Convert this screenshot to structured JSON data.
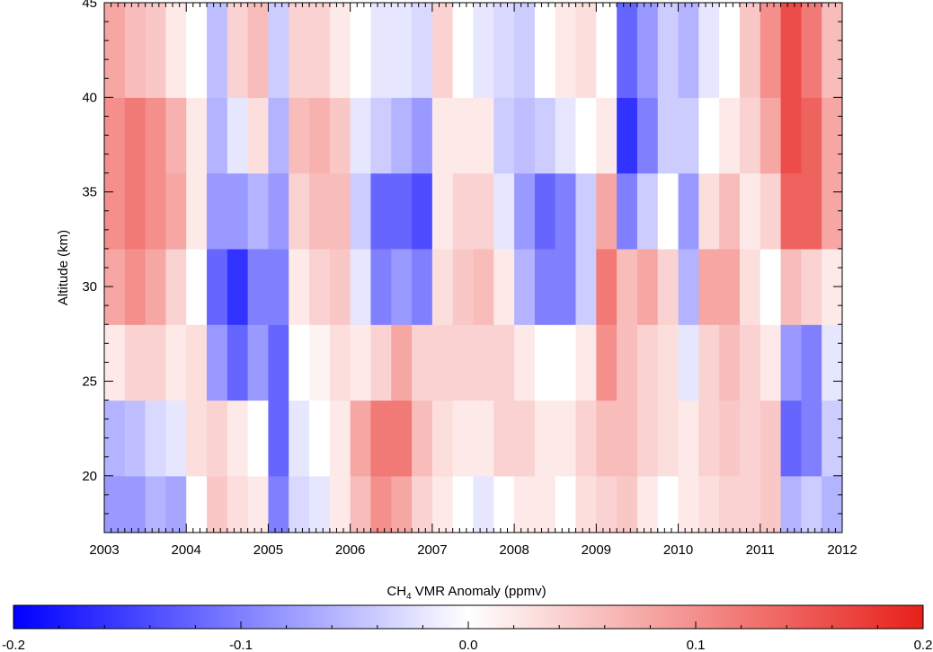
{
  "chart_data": {
    "type": "heatmap",
    "title": "",
    "xlabel": "",
    "ylabel": "Altitude (km)",
    "xlim": [
      2003,
      2012
    ],
    "ylim": [
      17,
      45
    ],
    "x_ticks": [
      "2003",
      "2004",
      "2005",
      "2006",
      "2007",
      "2008",
      "2009",
      "2010",
      "2011",
      "2012"
    ],
    "y_ticks": [
      "20",
      "25",
      "30",
      "35",
      "40",
      "45"
    ],
    "colorbar": {
      "label_main": "CH",
      "label_sub": "4",
      "label_rest": " VMR Anomaly (ppmv)",
      "range": [
        -0.2,
        0.2
      ],
      "ticks": [
        "-0.2",
        "-0.1",
        "0.0",
        "0.1",
        "0.2"
      ],
      "colors": [
        "#0000ff",
        "#ffffff",
        "#e8201a"
      ]
    },
    "altitudes": [
      18,
      22,
      26,
      30,
      34,
      38,
      42
    ],
    "series": [
      {
        "time": 2003.0,
        "anomaly": [
          -0.08,
          -0.06,
          0.02,
          0.08,
          0.1,
          0.1,
          0.08
        ]
      },
      {
        "time": 2003.25,
        "anomaly": [
          -0.08,
          -0.05,
          0.04,
          0.1,
          0.12,
          0.12,
          0.06
        ]
      },
      {
        "time": 2003.5,
        "anomaly": [
          -0.06,
          -0.03,
          0.04,
          0.08,
          0.1,
          0.1,
          0.05
        ]
      },
      {
        "time": 2003.75,
        "anomaly": [
          -0.07,
          -0.02,
          0.02,
          0.04,
          0.08,
          0.07,
          0.02
        ]
      },
      {
        "time": 2004.0,
        "anomaly": [
          0.0,
          0.03,
          0.03,
          0.0,
          0.02,
          0.02,
          0.0
        ]
      },
      {
        "time": 2004.25,
        "anomaly": [
          0.05,
          0.04,
          -0.08,
          -0.12,
          -0.08,
          -0.06,
          -0.05
        ]
      },
      {
        "time": 2004.5,
        "anomaly": [
          0.03,
          0.02,
          -0.12,
          -0.16,
          -0.08,
          -0.02,
          0.04
        ]
      },
      {
        "time": 2004.75,
        "anomaly": [
          0.02,
          0.0,
          -0.08,
          -0.1,
          -0.06,
          0.03,
          0.06
        ]
      },
      {
        "time": 2005.0,
        "anomaly": [
          -0.1,
          -0.12,
          -0.12,
          -0.1,
          -0.08,
          -0.06,
          -0.04
        ]
      },
      {
        "time": 2005.25,
        "anomaly": [
          -0.03,
          -0.02,
          0.0,
          0.02,
          0.04,
          0.06,
          0.04
        ]
      },
      {
        "time": 2005.5,
        "anomaly": [
          -0.02,
          0.0,
          0.01,
          0.04,
          0.06,
          0.07,
          0.04
        ]
      },
      {
        "time": 2005.75,
        "anomaly": [
          0.02,
          0.02,
          0.03,
          0.05,
          0.06,
          0.05,
          0.02
        ]
      },
      {
        "time": 2006.0,
        "anomaly": [
          0.06,
          0.08,
          0.02,
          -0.02,
          -0.04,
          -0.02,
          0.0
        ]
      },
      {
        "time": 2006.25,
        "anomaly": [
          0.1,
          0.12,
          0.04,
          -0.1,
          -0.12,
          -0.04,
          -0.02
        ]
      },
      {
        "time": 2006.5,
        "anomaly": [
          0.08,
          0.12,
          0.08,
          -0.08,
          -0.12,
          -0.06,
          -0.02
        ]
      },
      {
        "time": 2006.75,
        "anomaly": [
          0.04,
          0.06,
          0.04,
          -0.1,
          -0.14,
          -0.08,
          -0.03
        ]
      },
      {
        "time": 2007.0,
        "anomaly": [
          0.02,
          0.03,
          0.04,
          0.03,
          0.02,
          0.02,
          0.04
        ]
      },
      {
        "time": 2007.25,
        "anomaly": [
          0.0,
          0.02,
          0.04,
          0.05,
          0.04,
          0.02,
          0.0
        ]
      },
      {
        "time": 2007.5,
        "anomaly": [
          -0.02,
          0.02,
          0.04,
          0.06,
          0.04,
          0.02,
          -0.02
        ]
      },
      {
        "time": 2007.75,
        "anomaly": [
          0.0,
          0.04,
          0.04,
          0.02,
          -0.02,
          -0.04,
          -0.03
        ]
      },
      {
        "time": 2008.0,
        "anomaly": [
          0.02,
          0.04,
          0.02,
          -0.06,
          -0.08,
          -0.05,
          -0.04
        ]
      },
      {
        "time": 2008.25,
        "anomaly": [
          0.02,
          0.02,
          0.0,
          -0.1,
          -0.12,
          -0.04,
          0.0
        ]
      },
      {
        "time": 2008.5,
        "anomaly": [
          0.0,
          0.02,
          0.0,
          -0.1,
          -0.1,
          -0.02,
          0.02
        ]
      },
      {
        "time": 2008.75,
        "anomaly": [
          0.03,
          0.04,
          0.02,
          -0.04,
          -0.04,
          0.0,
          0.03
        ]
      },
      {
        "time": 2009.0,
        "anomaly": [
          0.04,
          0.06,
          0.1,
          0.12,
          0.08,
          0.02,
          0.0
        ]
      },
      {
        "time": 2009.25,
        "anomaly": [
          0.05,
          0.06,
          0.06,
          0.06,
          -0.1,
          -0.16,
          -0.12
        ]
      },
      {
        "time": 2009.5,
        "anomaly": [
          0.02,
          0.04,
          0.04,
          0.08,
          -0.04,
          -0.1,
          -0.08
        ]
      },
      {
        "time": 2009.75,
        "anomaly": [
          0.0,
          0.03,
          0.03,
          0.04,
          0.0,
          -0.04,
          -0.04
        ]
      },
      {
        "time": 2010.0,
        "anomaly": [
          0.02,
          0.02,
          -0.02,
          -0.06,
          -0.08,
          -0.04,
          -0.06
        ]
      },
      {
        "time": 2010.25,
        "anomaly": [
          0.03,
          0.04,
          0.04,
          0.08,
          0.03,
          0.0,
          -0.02
        ]
      },
      {
        "time": 2010.5,
        "anomaly": [
          0.04,
          0.05,
          0.06,
          0.08,
          0.06,
          0.02,
          0.0
        ]
      },
      {
        "time": 2010.75,
        "anomaly": [
          0.04,
          0.04,
          0.04,
          0.03,
          0.02,
          0.04,
          0.05
        ]
      },
      {
        "time": 2011.0,
        "anomaly": [
          0.05,
          0.05,
          0.02,
          0.0,
          0.04,
          0.08,
          0.1
        ]
      },
      {
        "time": 2011.25,
        "anomaly": [
          -0.06,
          -0.12,
          -0.08,
          0.06,
          0.14,
          0.16,
          0.16
        ]
      },
      {
        "time": 2011.5,
        "anomaly": [
          -0.04,
          -0.1,
          -0.1,
          0.04,
          0.14,
          0.14,
          0.12
        ]
      },
      {
        "time": 2011.75,
        "anomaly": [
          -0.06,
          -0.04,
          -0.02,
          0.02,
          0.08,
          0.08,
          0.06
        ]
      }
    ]
  }
}
